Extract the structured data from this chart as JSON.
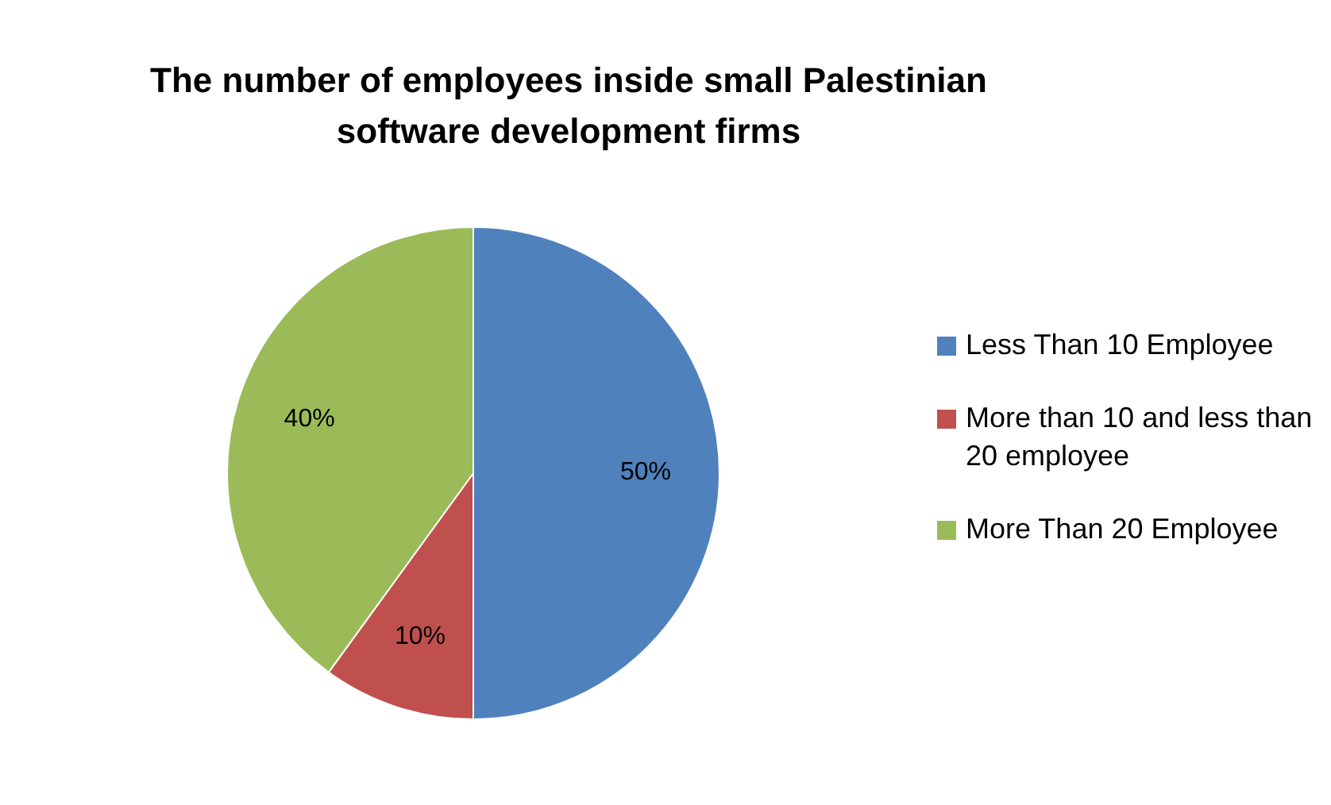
{
  "chart_data": {
    "type": "pie",
    "title": "The number of employees inside small Palestinian software development firms",
    "categories": [
      "Less Than 10 Employee",
      "More than 10 and less than 20 employee",
      "More Than 20 Employee"
    ],
    "values": [
      50,
      10,
      40
    ],
    "colors": [
      "#4f81bd",
      "#c0504d",
      "#9bbb59"
    ],
    "value_labels": [
      "50%",
      "10%",
      "40%"
    ],
    "legend": "right"
  }
}
